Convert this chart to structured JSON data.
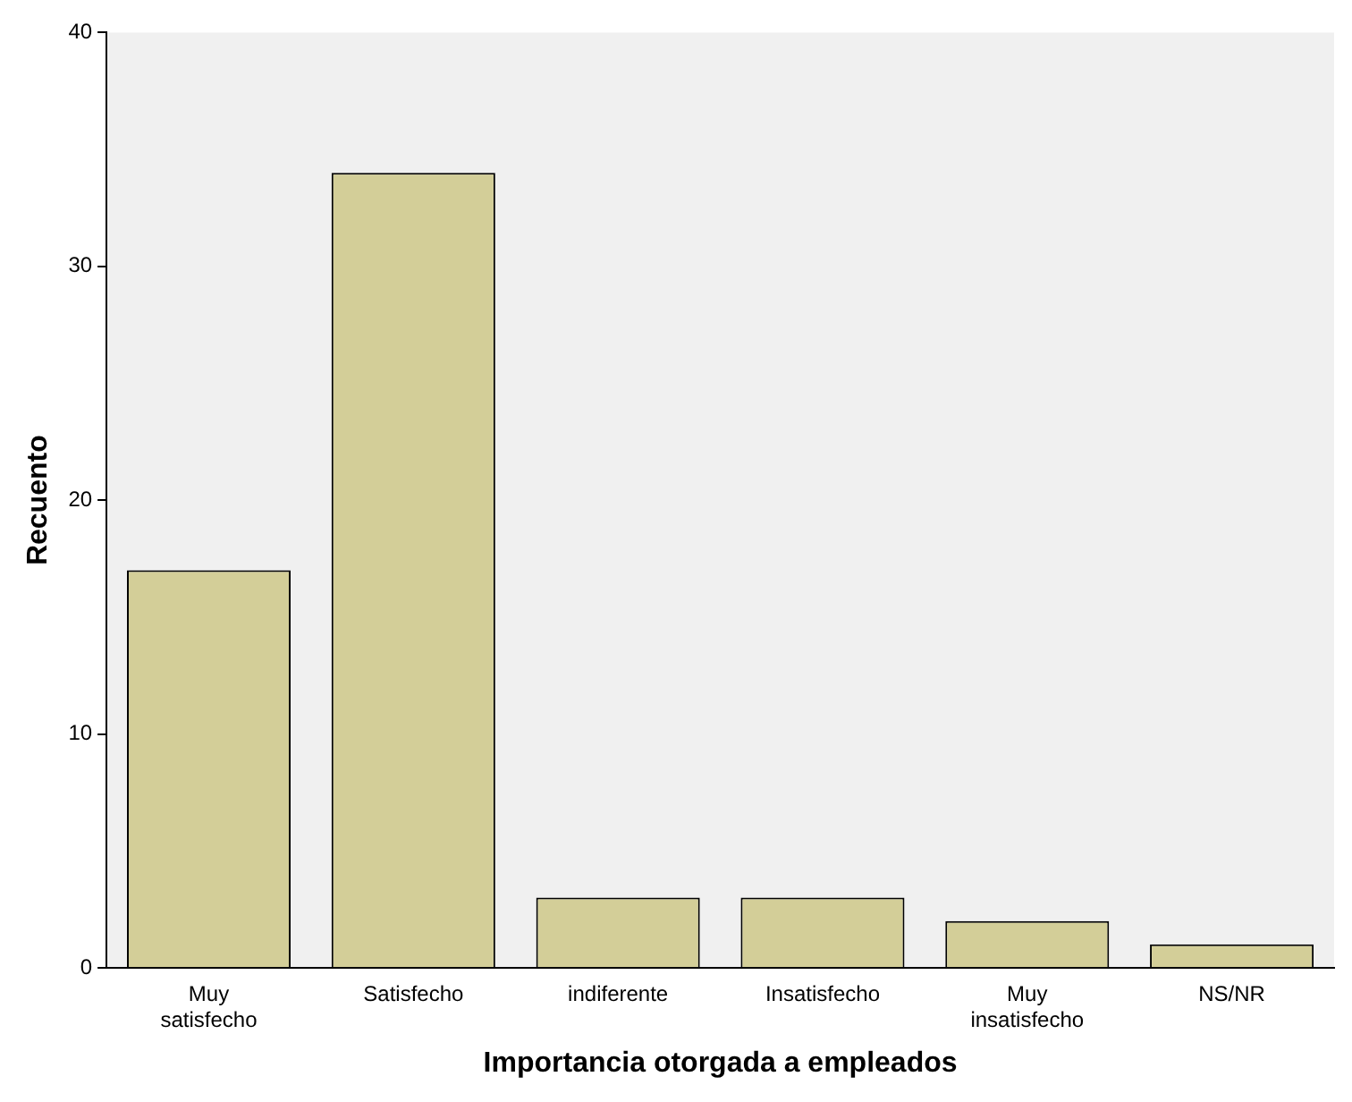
{
  "chart_data": {
    "type": "bar",
    "xlabel": "Importancia otorgada a empleados",
    "ylabel": "Recuento",
    "categories": [
      "Muy satisfecho",
      "Satisfecho",
      "indiferente",
      "Insatisfecho",
      "Muy insatisfecho",
      "NS/NR"
    ],
    "values": [
      17,
      34,
      3,
      3,
      2,
      1
    ],
    "color": "#d3ce98",
    "ylim": [
      0,
      40
    ],
    "yticks": [
      0,
      10,
      20,
      30,
      40
    ],
    "grid": false,
    "legend": false
  }
}
